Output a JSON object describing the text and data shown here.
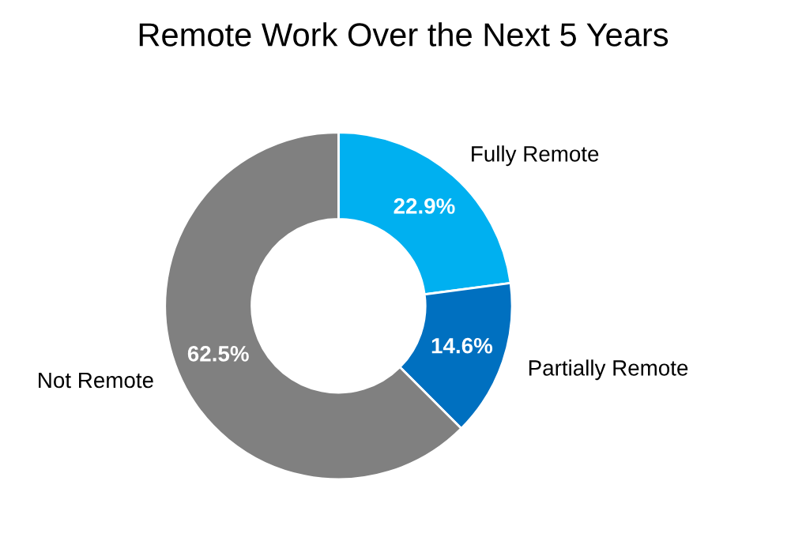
{
  "chart_data": {
    "type": "donut",
    "title": "Remote Work Over the Next 5 Years",
    "categories": [
      "Fully Remote",
      "Partially Remote",
      "Not Remote"
    ],
    "values": [
      22.9,
      14.6,
      62.5
    ],
    "value_labels": [
      "22.9%",
      "14.6%",
      "62.5%"
    ],
    "colors": [
      "#00b0f0",
      "#0070c0",
      "#808080"
    ],
    "legend": false
  }
}
